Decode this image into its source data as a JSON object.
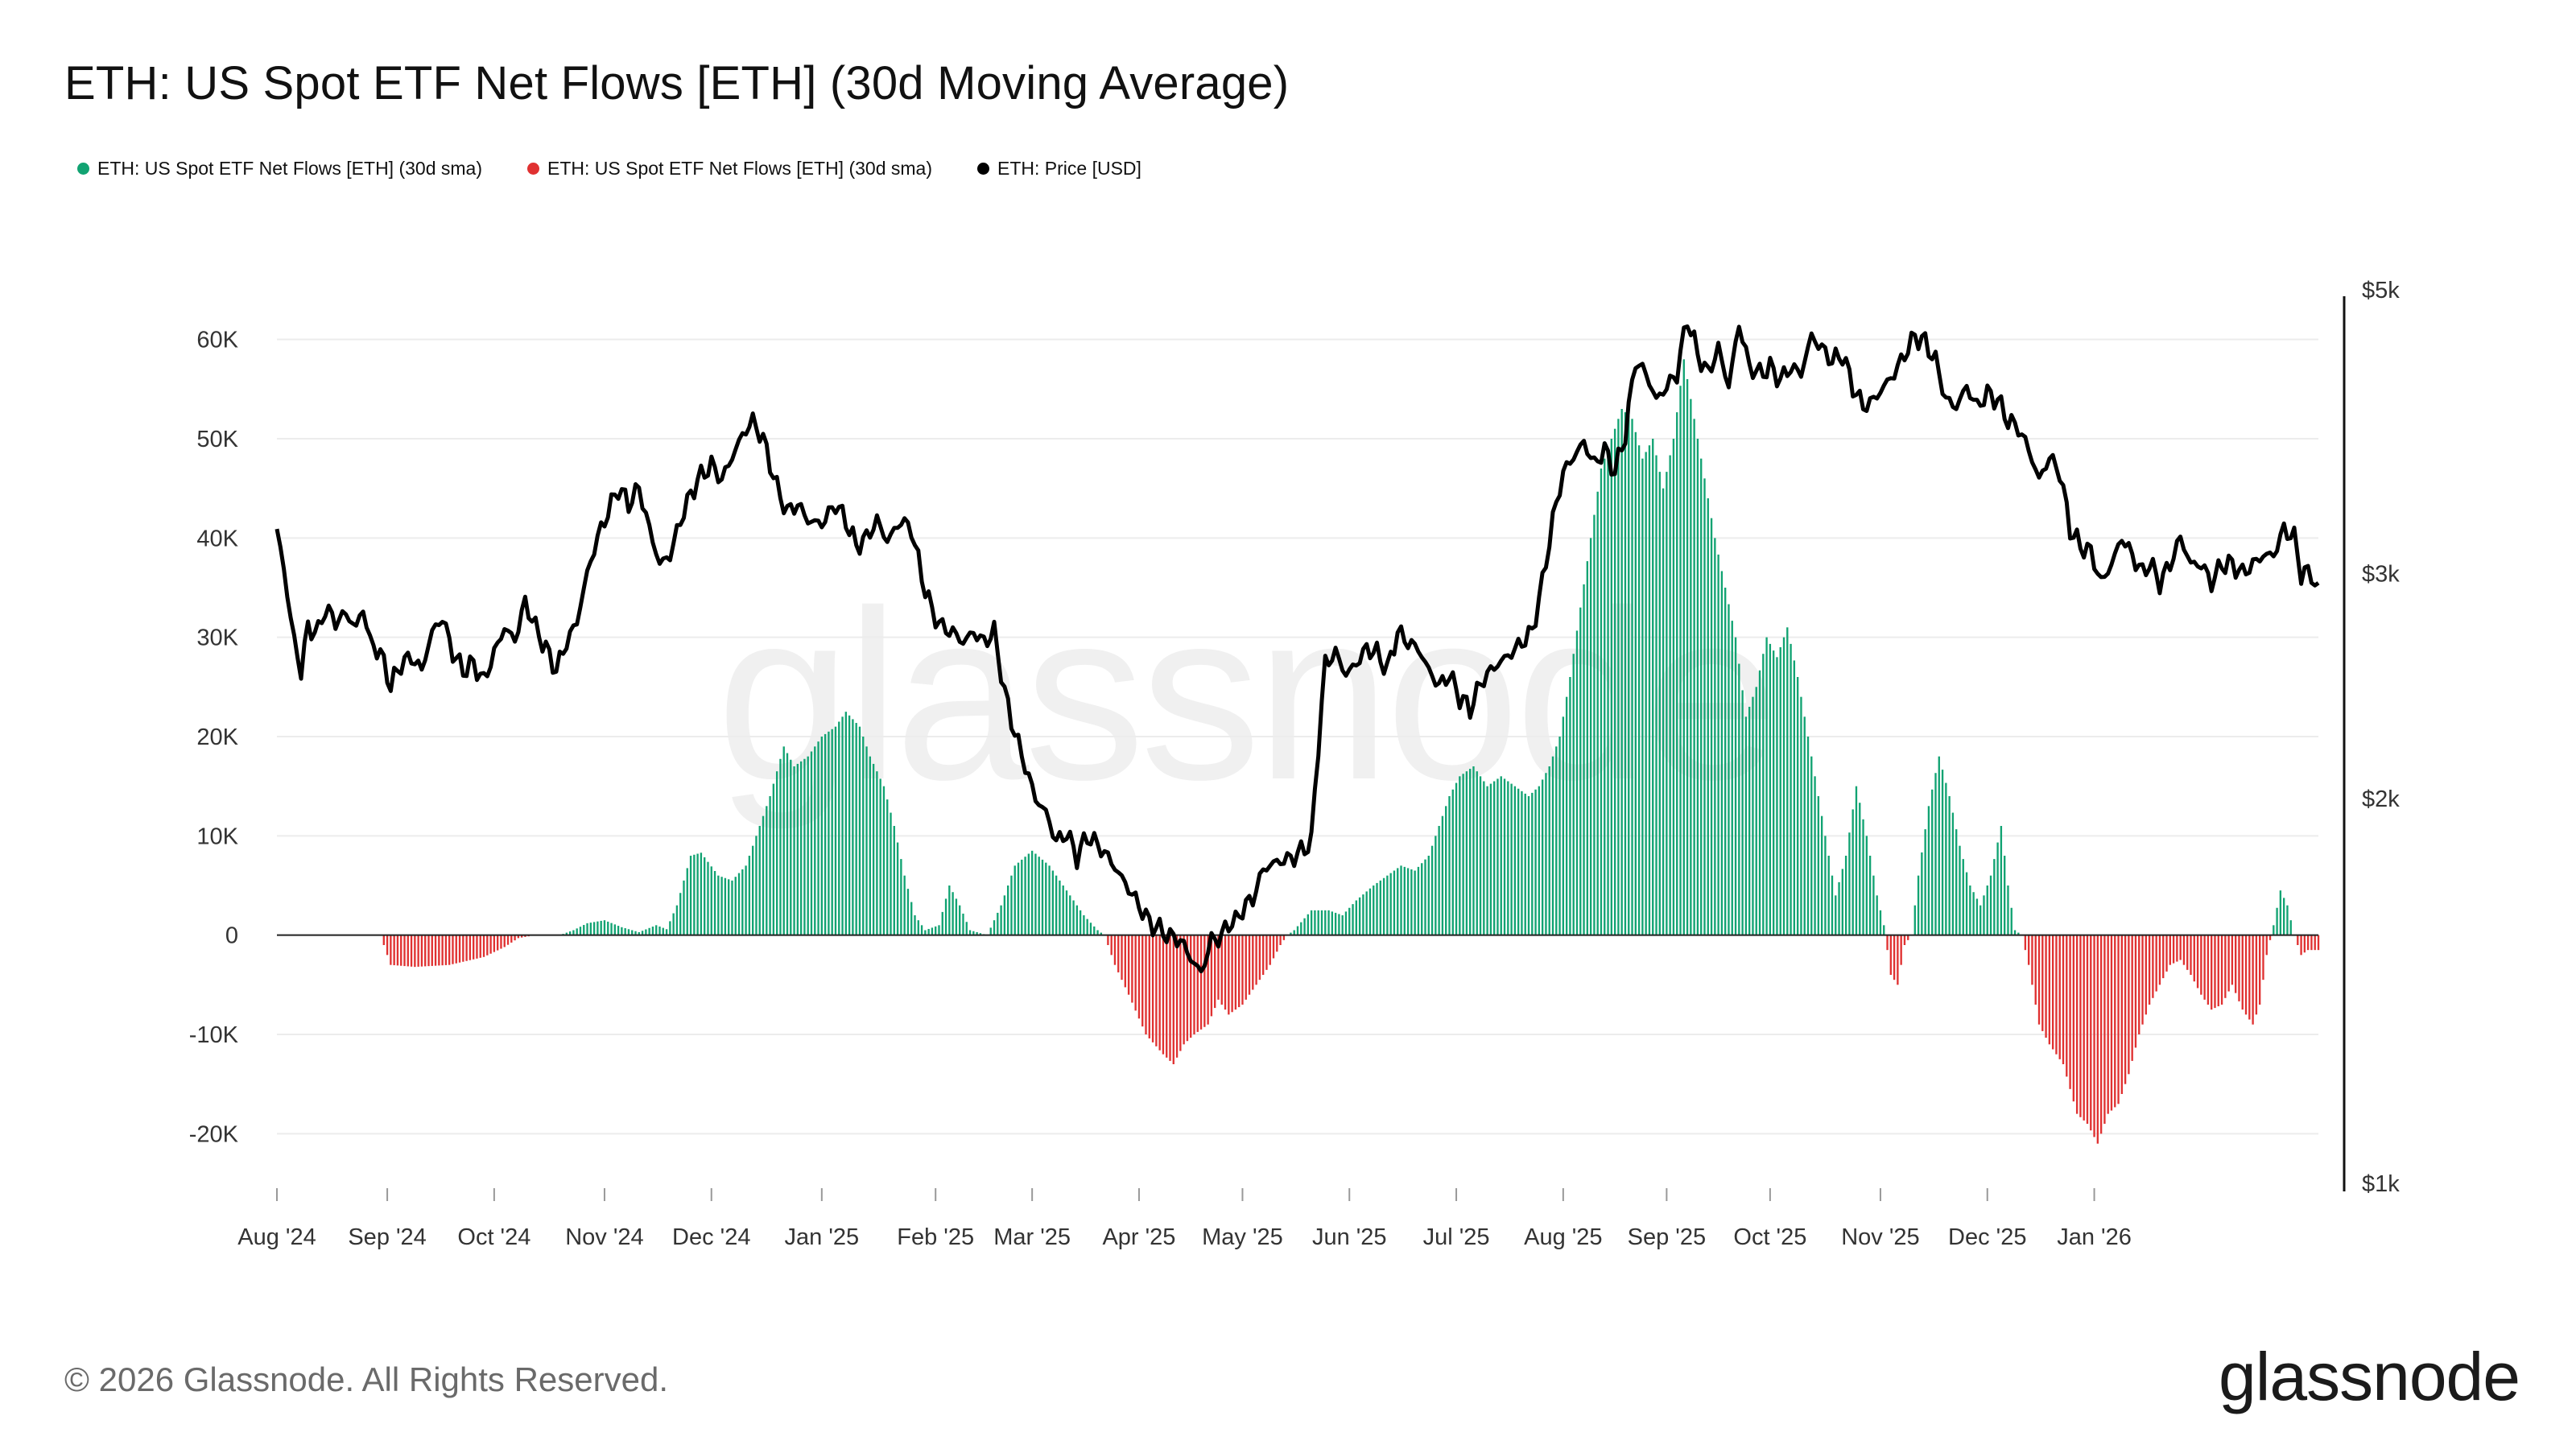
{
  "title": "ETH: US Spot ETF Net Flows [ETH] (30d Moving Average)",
  "footer": "© 2026 Glassnode. All Rights Reserved.",
  "logo": "glassnode",
  "watermark": "glassnode",
  "legend": [
    {
      "label": "ETH: US Spot ETF Net Flows [ETH] (30d sma)",
      "color": "#11a372"
    },
    {
      "label": "ETH: US Spot ETF Net Flows [ETH] (30d sma)",
      "color": "#e03131"
    },
    {
      "label": "ETH: Price [USD]",
      "color": "#000000"
    }
  ],
  "chart_data": {
    "type": "bar",
    "title": "ETH: US Spot ETF Net Flows [ETH] (30d Moving Average)",
    "x_tick_labels": [
      "Aug '24",
      "Sep '24",
      "Oct '24",
      "Nov '24",
      "Dec '24",
      "Jan '25",
      "Feb '25",
      "Mar '25",
      "Apr '25",
      "May '25",
      "Jun '25",
      "Jul '25",
      "Aug '25",
      "Sep '25",
      "Oct '25",
      "Nov '25",
      "Dec '25",
      "Jan '26"
    ],
    "y_left_ticks": [
      "-20K",
      "-10K",
      "0",
      "10K",
      "20K",
      "30K",
      "40K",
      "50K",
      "60K"
    ],
    "y_left_tick_values": [
      -20000,
      -10000,
      0,
      10000,
      20000,
      30000,
      40000,
      50000,
      60000
    ],
    "y_left_range": [
      -25000,
      65000
    ],
    "y_right_ticks": [
      "$1k",
      "$2k",
      "$3k",
      "$5k"
    ],
    "y_right_tick_values": [
      1000,
      2000,
      3000,
      5000
    ],
    "y_right_scale": "log",
    "y_right_range": [
      1000,
      5000
    ],
    "grid": true,
    "legend_position": "top-left",
    "colors": {
      "positive": "#11a372",
      "negative": "#e03131",
      "price": "#000000"
    },
    "flow_keypoints": [
      [
        0,
        0
      ],
      [
        30,
        0
      ],
      [
        33,
        -3000
      ],
      [
        40,
        -3200
      ],
      [
        50,
        -3000
      ],
      [
        60,
        -2200
      ],
      [
        66,
        -1200
      ],
      [
        70,
        -300
      ],
      [
        75,
        0
      ],
      [
        82,
        0
      ],
      [
        86,
        500
      ],
      [
        90,
        1200
      ],
      [
        95,
        1500
      ],
      [
        100,
        800
      ],
      [
        105,
        300
      ],
      [
        110,
        1000
      ],
      [
        113,
        600
      ],
      [
        116,
        3000
      ],
      [
        120,
        8000
      ],
      [
        123,
        8300
      ],
      [
        128,
        6000
      ],
      [
        132,
        5500
      ],
      [
        136,
        7000
      ],
      [
        140,
        11000
      ],
      [
        143,
        14000
      ],
      [
        147,
        19000
      ],
      [
        150,
        17000
      ],
      [
        154,
        18000
      ],
      [
        158,
        20000
      ],
      [
        162,
        21000
      ],
      [
        165,
        22500
      ],
      [
        169,
        21000
      ],
      [
        172,
        18000
      ],
      [
        176,
        15000
      ],
      [
        179,
        11000
      ],
      [
        182,
        6000
      ],
      [
        185,
        2000
      ],
      [
        188,
        500
      ],
      [
        192,
        1000
      ],
      [
        195,
        5000
      ],
      [
        198,
        3000
      ],
      [
        201,
        500
      ],
      [
        206,
        0
      ],
      [
        210,
        3000
      ],
      [
        214,
        7000
      ],
      [
        219,
        8500
      ],
      [
        224,
        7000
      ],
      [
        229,
        4500
      ],
      [
        234,
        2000
      ],
      [
        238,
        500
      ],
      [
        240,
        0
      ],
      [
        243,
        -3000
      ],
      [
        247,
        -6000
      ],
      [
        252,
        -10000
      ],
      [
        257,
        -12000
      ],
      [
        260,
        -13000
      ],
      [
        263,
        -11000
      ],
      [
        266,
        -10000
      ],
      [
        270,
        -9000
      ],
      [
        273,
        -6500
      ],
      [
        276,
        -8000
      ],
      [
        280,
        -7000
      ],
      [
        284,
        -5000
      ],
      [
        288,
        -3000
      ],
      [
        291,
        -1000
      ],
      [
        293,
        0
      ],
      [
        295,
        500
      ],
      [
        300,
        2500
      ],
      [
        305,
        2500
      ],
      [
        309,
        2000
      ],
      [
        313,
        3500
      ],
      [
        318,
        5000
      ],
      [
        322,
        6000
      ],
      [
        326,
        7000
      ],
      [
        330,
        6500
      ],
      [
        334,
        8000
      ],
      [
        337,
        11000
      ],
      [
        340,
        14000
      ],
      [
        343,
        16000
      ],
      [
        347,
        17000
      ],
      [
        351,
        15000
      ],
      [
        355,
        16000
      ],
      [
        359,
        15000
      ],
      [
        363,
        14000
      ],
      [
        366,
        15000
      ],
      [
        369,
        17000
      ],
      [
        372,
        20000
      ],
      [
        375,
        26000
      ],
      [
        378,
        33000
      ],
      [
        381,
        40000
      ],
      [
        384,
        47000
      ],
      [
        387,
        50000
      ],
      [
        390,
        53000
      ],
      [
        393,
        52000
      ],
      [
        396,
        48000
      ],
      [
        399,
        50000
      ],
      [
        402,
        45000
      ],
      [
        405,
        50000
      ],
      [
        408,
        58000
      ],
      [
        411,
        52000
      ],
      [
        414,
        46000
      ],
      [
        417,
        40000
      ],
      [
        420,
        35000
      ],
      [
        423,
        30000
      ],
      [
        426,
        22000
      ],
      [
        429,
        25000
      ],
      [
        432,
        30000
      ],
      [
        435,
        28000
      ],
      [
        438,
        31000
      ],
      [
        441,
        26000
      ],
      [
        443,
        22000
      ],
      [
        446,
        16000
      ],
      [
        449,
        10000
      ],
      [
        452,
        4000
      ],
      [
        455,
        8000
      ],
      [
        458,
        15000
      ],
      [
        461,
        10000
      ],
      [
        464,
        4000
      ],
      [
        466,
        1000
      ],
      [
        468,
        -4000
      ],
      [
        470,
        -5000
      ],
      [
        472,
        -1000
      ],
      [
        474,
        0
      ],
      [
        476,
        6000
      ],
      [
        479,
        13000
      ],
      [
        482,
        18000
      ],
      [
        485,
        14000
      ],
      [
        488,
        9000
      ],
      [
        491,
        5000
      ],
      [
        494,
        3000
      ],
      [
        497,
        6000
      ],
      [
        500,
        11000
      ],
      [
        502,
        5000
      ],
      [
        504,
        500
      ],
      [
        506,
        0
      ],
      [
        508,
        -3000
      ],
      [
        511,
        -9000
      ],
      [
        514,
        -11000
      ],
      [
        518,
        -13000
      ],
      [
        522,
        -18000
      ],
      [
        525,
        -19000
      ],
      [
        528,
        -21000
      ],
      [
        531,
        -18000
      ],
      [
        534,
        -17000
      ],
      [
        537,
        -14000
      ],
      [
        540,
        -10000
      ],
      [
        543,
        -7000
      ],
      [
        546,
        -5000
      ],
      [
        549,
        -3000
      ],
      [
        552,
        -2500
      ],
      [
        555,
        -4000
      ],
      [
        558,
        -6000
      ],
      [
        561,
        -7500
      ],
      [
        564,
        -7000
      ],
      [
        567,
        -5000
      ],
      [
        570,
        -7500
      ],
      [
        573,
        -9000
      ],
      [
        575,
        -7000
      ],
      [
        577,
        -2000
      ],
      [
        579,
        1000
      ],
      [
        581,
        4500
      ],
      [
        583,
        3000
      ],
      [
        585,
        0
      ],
      [
        587,
        -2000
      ],
      [
        589,
        -1500
      ]
    ],
    "price_keypoints": [
      [
        0,
        3250
      ],
      [
        3,
        2900
      ],
      [
        5,
        2650
      ],
      [
        7,
        2520
      ],
      [
        9,
        2720
      ],
      [
        12,
        2700
      ],
      [
        14,
        2820
      ],
      [
        17,
        2750
      ],
      [
        20,
        2790
      ],
      [
        23,
        2720
      ],
      [
        25,
        2820
      ],
      [
        27,
        2650
      ],
      [
        30,
        2600
      ],
      [
        33,
        2450
      ],
      [
        36,
        2550
      ],
      [
        39,
        2580
      ],
      [
        42,
        2520
      ],
      [
        45,
        2700
      ],
      [
        48,
        2770
      ],
      [
        51,
        2600
      ],
      [
        54,
        2520
      ],
      [
        57,
        2550
      ],
      [
        60,
        2470
      ],
      [
        63,
        2600
      ],
      [
        66,
        2720
      ],
      [
        69,
        2660
      ],
      [
        72,
        2850
      ],
      [
        75,
        2720
      ],
      [
        78,
        2620
      ],
      [
        81,
        2520
      ],
      [
        84,
        2650
      ],
      [
        87,
        2750
      ],
      [
        90,
        3000
      ],
      [
        93,
        3200
      ],
      [
        96,
        3350
      ],
      [
        99,
        3500
      ],
      [
        102,
        3400
      ],
      [
        105,
        3500
      ],
      [
        108,
        3250
      ],
      [
        111,
        3050
      ],
      [
        114,
        3100
      ],
      [
        118,
        3360
      ],
      [
        122,
        3550
      ],
      [
        126,
        3650
      ],
      [
        129,
        3550
      ],
      [
        132,
        3700
      ],
      [
        135,
        3850
      ],
      [
        138,
        3950
      ],
      [
        141,
        3820
      ],
      [
        145,
        3500
      ],
      [
        148,
        3350
      ],
      [
        151,
        3400
      ],
      [
        154,
        3300
      ],
      [
        158,
        3280
      ],
      [
        162,
        3400
      ],
      [
        165,
        3300
      ],
      [
        168,
        3150
      ],
      [
        171,
        3200
      ],
      [
        174,
        3300
      ],
      [
        177,
        3180
      ],
      [
        181,
        3300
      ],
      [
        184,
        3250
      ],
      [
        187,
        2980
      ],
      [
        190,
        2800
      ],
      [
        193,
        2720
      ],
      [
        196,
        2700
      ],
      [
        199,
        2650
      ],
      [
        202,
        2700
      ],
      [
        205,
        2650
      ],
      [
        208,
        2700
      ],
      [
        211,
        2420
      ],
      [
        214,
        2250
      ],
      [
        217,
        2120
      ],
      [
        220,
        2000
      ],
      [
        223,
        1950
      ],
      [
        226,
        1850
      ],
      [
        229,
        1880
      ],
      [
        232,
        1800
      ],
      [
        235,
        1870
      ],
      [
        238,
        1840
      ],
      [
        241,
        1800
      ],
      [
        244,
        1750
      ],
      [
        247,
        1700
      ],
      [
        250,
        1650
      ],
      [
        253,
        1600
      ],
      [
        256,
        1580
      ],
      [
        259,
        1560
      ],
      [
        262,
        1550
      ],
      [
        265,
        1500
      ],
      [
        268,
        1460
      ],
      [
        271,
        1550
      ],
      [
        274,
        1560
      ],
      [
        276,
        1600
      ],
      [
        278,
        1600
      ],
      [
        280,
        1640
      ],
      [
        283,
        1670
      ],
      [
        286,
        1760
      ],
      [
        289,
        1780
      ],
      [
        292,
        1790
      ],
      [
        295,
        1800
      ],
      [
        297,
        1820
      ],
      [
        300,
        1850
      ],
      [
        302,
        2200
      ],
      [
        304,
        2550
      ],
      [
        307,
        2600
      ],
      [
        310,
        2500
      ],
      [
        313,
        2550
      ],
      [
        316,
        2620
      ],
      [
        319,
        2600
      ],
      [
        322,
        2520
      ],
      [
        325,
        2700
      ],
      [
        328,
        2650
      ],
      [
        331,
        2620
      ],
      [
        334,
        2520
      ],
      [
        337,
        2450
      ],
      [
        340,
        2500
      ],
      [
        343,
        2400
      ],
      [
        346,
        2350
      ],
      [
        349,
        2460
      ],
      [
        352,
        2520
      ],
      [
        355,
        2560
      ],
      [
        358,
        2600
      ],
      [
        361,
        2650
      ],
      [
        364,
        2700
      ],
      [
        367,
        2950
      ],
      [
        370,
        3300
      ],
      [
        373,
        3600
      ],
      [
        376,
        3700
      ],
      [
        379,
        3800
      ],
      [
        382,
        3650
      ],
      [
        385,
        3750
      ],
      [
        388,
        3600
      ],
      [
        391,
        3850
      ],
      [
        394,
        4400
      ],
      [
        397,
        4300
      ],
      [
        400,
        4100
      ],
      [
        403,
        4200
      ],
      [
        406,
        4300
      ],
      [
        409,
        4750
      ],
      [
        412,
        4450
      ],
      [
        415,
        4300
      ],
      [
        418,
        4500
      ],
      [
        421,
        4200
      ],
      [
        424,
        4700
      ],
      [
        427,
        4350
      ],
      [
        430,
        4300
      ],
      [
        433,
        4350
      ],
      [
        436,
        4250
      ],
      [
        439,
        4350
      ],
      [
        442,
        4300
      ],
      [
        445,
        4600
      ],
      [
        448,
        4500
      ],
      [
        451,
        4400
      ],
      [
        454,
        4450
      ],
      [
        457,
        4200
      ],
      [
        460,
        4050
      ],
      [
        463,
        4100
      ],
      [
        466,
        4200
      ],
      [
        469,
        4300
      ],
      [
        472,
        4450
      ],
      [
        475,
        4600
      ],
      [
        478,
        4550
      ],
      [
        481,
        4400
      ],
      [
        484,
        4100
      ],
      [
        487,
        4050
      ],
      [
        490,
        4200
      ],
      [
        493,
        4050
      ],
      [
        496,
        4150
      ],
      [
        499,
        4100
      ],
      [
        502,
        3950
      ],
      [
        505,
        3900
      ],
      [
        508,
        3750
      ],
      [
        511,
        3550
      ],
      [
        514,
        3700
      ],
      [
        517,
        3600
      ],
      [
        520,
        3250
      ],
      [
        523,
        3150
      ],
      [
        526,
        3120
      ],
      [
        529,
        2950
      ],
      [
        532,
        3050
      ],
      [
        535,
        3200
      ],
      [
        538,
        3100
      ],
      [
        541,
        3000
      ],
      [
        543,
        3060
      ],
      [
        546,
        2950
      ],
      [
        549,
        3050
      ],
      [
        552,
        3200
      ],
      [
        555,
        3050
      ],
      [
        558,
        3050
      ],
      [
        561,
        2950
      ],
      [
        564,
        3050
      ],
      [
        567,
        3050
      ],
      [
        570,
        3000
      ],
      [
        573,
        3050
      ],
      [
        576,
        3100
      ],
      [
        579,
        3100
      ],
      [
        582,
        3250
      ],
      [
        585,
        3200
      ],
      [
        587,
        3000
      ],
      [
        590,
        3000
      ],
      [
        592,
        2900
      ]
    ]
  }
}
